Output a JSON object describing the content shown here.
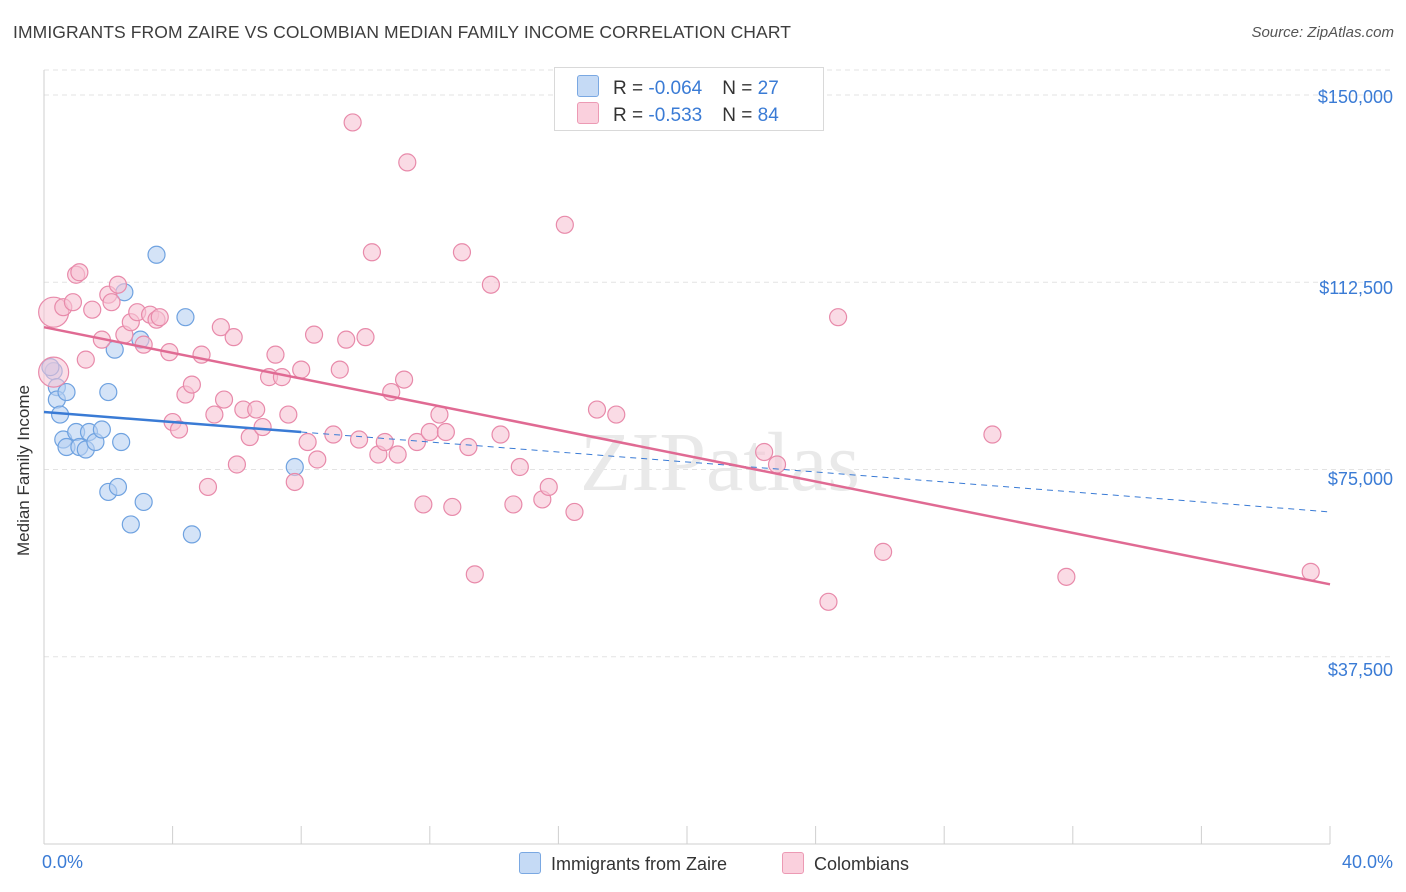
{
  "header": {
    "title": "IMMIGRANTS FROM ZAIRE VS COLOMBIAN MEDIAN FAMILY INCOME CORRELATION CHART",
    "source": "Source: ZipAtlas.com"
  },
  "watermark": "ZIPatlas",
  "legend": {
    "rows": [
      {
        "r_label": "R = ",
        "r_value": "-0.064",
        "n_label": "N = ",
        "n_value": "27",
        "color": "#a9c8ef"
      },
      {
        "r_label": "R = ",
        "r_value": "-0.533",
        "n_label": "N = ",
        "n_value": "84",
        "color": "#f5b4c8"
      }
    ]
  },
  "chart_data": {
    "type": "scatter",
    "title": "IMMIGRANTS FROM ZAIRE VS COLOMBIAN MEDIAN FAMILY INCOME CORRELATION CHART",
    "xlabel": "",
    "ylabel": "Median Family Income",
    "xlim": [
      0,
      40
    ],
    "ylim": [
      0,
      155000
    ],
    "x_tick_labels": [
      "0.0%",
      "40.0%"
    ],
    "y_ticks": [
      37500,
      75000,
      112500,
      150000
    ],
    "y_tick_labels": [
      "$37,500",
      "$75,000",
      "$112,500",
      "$150,000"
    ],
    "grid": true,
    "legend_position": "top-center",
    "series": [
      {
        "name": "Immigrants from Zaire",
        "color": "#6fa2e0",
        "fill": "#b7d1f2",
        "trend": {
          "x": [
            0,
            8
          ],
          "y": [
            86500,
            82500
          ],
          "dashed_to_x": 40,
          "dashed_end_y": 66500,
          "color": "#3a7bd5"
        },
        "points": [
          [
            0.3,
            94700
          ],
          [
            0.4,
            91500
          ],
          [
            0.4,
            89000
          ],
          [
            0.5,
            86000
          ],
          [
            0.7,
            90500
          ],
          [
            0.6,
            81000
          ],
          [
            0.7,
            79500
          ],
          [
            1.0,
            82500
          ],
          [
            1.1,
            79500
          ],
          [
            1.3,
            79000
          ],
          [
            1.4,
            82500
          ],
          [
            1.6,
            80500
          ],
          [
            1.8,
            83000
          ],
          [
            2.0,
            70500
          ],
          [
            2.0,
            90500
          ],
          [
            2.2,
            99000
          ],
          [
            2.3,
            71500
          ],
          [
            2.4,
            80500
          ],
          [
            2.5,
            110500
          ],
          [
            2.7,
            64000
          ],
          [
            3.0,
            101000
          ],
          [
            3.1,
            68500
          ],
          [
            3.5,
            118000
          ],
          [
            4.4,
            105500
          ],
          [
            4.6,
            62000
          ],
          [
            7.8,
            75500
          ],
          [
            0.2,
            95500
          ]
        ]
      },
      {
        "name": "Colombians",
        "color": "#e88aaa",
        "fill": "#f7c3d4",
        "trend": {
          "x": [
            0,
            40
          ],
          "y": [
            103500,
            52000
          ],
          "color": "#e06a93"
        },
        "points": [
          [
            0.3,
            94500
          ],
          [
            0.3,
            106500
          ],
          [
            0.6,
            107500
          ],
          [
            0.9,
            108500
          ],
          [
            1.0,
            114000
          ],
          [
            1.1,
            114500
          ],
          [
            1.3,
            97000
          ],
          [
            1.5,
            107000
          ],
          [
            1.8,
            101000
          ],
          [
            2.0,
            110000
          ],
          [
            2.1,
            108500
          ],
          [
            2.3,
            112000
          ],
          [
            2.5,
            102000
          ],
          [
            2.7,
            104500
          ],
          [
            2.9,
            106500
          ],
          [
            3.1,
            100000
          ],
          [
            3.3,
            106000
          ],
          [
            3.5,
            105000
          ],
          [
            3.6,
            105500
          ],
          [
            3.9,
            98500
          ],
          [
            4.0,
            84500
          ],
          [
            4.2,
            83000
          ],
          [
            4.4,
            90000
          ],
          [
            4.6,
            92000
          ],
          [
            4.9,
            98000
          ],
          [
            5.1,
            71500
          ],
          [
            5.3,
            86000
          ],
          [
            5.5,
            103500
          ],
          [
            5.6,
            89000
          ],
          [
            5.9,
            101500
          ],
          [
            6.0,
            76000
          ],
          [
            6.2,
            87000
          ],
          [
            6.4,
            81500
          ],
          [
            6.6,
            87000
          ],
          [
            6.8,
            83500
          ],
          [
            7.0,
            93500
          ],
          [
            7.2,
            98000
          ],
          [
            7.4,
            93500
          ],
          [
            7.6,
            86000
          ],
          [
            7.8,
            72500
          ],
          [
            8.0,
            95000
          ],
          [
            8.2,
            80500
          ],
          [
            8.4,
            102000
          ],
          [
            8.5,
            77000
          ],
          [
            9.0,
            82000
          ],
          [
            9.2,
            95000
          ],
          [
            9.4,
            101000
          ],
          [
            9.6,
            144500
          ],
          [
            9.8,
            81000
          ],
          [
            10.0,
            101500
          ],
          [
            10.2,
            118500
          ],
          [
            10.4,
            78000
          ],
          [
            10.6,
            80500
          ],
          [
            10.8,
            90500
          ],
          [
            11.0,
            78000
          ],
          [
            11.2,
            93000
          ],
          [
            11.3,
            136500
          ],
          [
            11.6,
            80500
          ],
          [
            11.8,
            68000
          ],
          [
            12.0,
            82500
          ],
          [
            12.3,
            86000
          ],
          [
            12.5,
            82500
          ],
          [
            12.7,
            67500
          ],
          [
            13.0,
            118500
          ],
          [
            13.2,
            79500
          ],
          [
            13.4,
            54000
          ],
          [
            13.9,
            112000
          ],
          [
            14.2,
            82000
          ],
          [
            14.6,
            68000
          ],
          [
            14.8,
            75500
          ],
          [
            15.5,
            69000
          ],
          [
            15.7,
            71500
          ],
          [
            16.2,
            124000
          ],
          [
            16.5,
            66500
          ],
          [
            17.2,
            87000
          ],
          [
            17.8,
            86000
          ],
          [
            22.4,
            78500
          ],
          [
            22.8,
            76000
          ],
          [
            24.7,
            105500
          ],
          [
            24.4,
            48500
          ],
          [
            26.1,
            58500
          ],
          [
            29.5,
            82000
          ],
          [
            31.8,
            53500
          ],
          [
            39.4,
            54500
          ]
        ]
      }
    ]
  }
}
